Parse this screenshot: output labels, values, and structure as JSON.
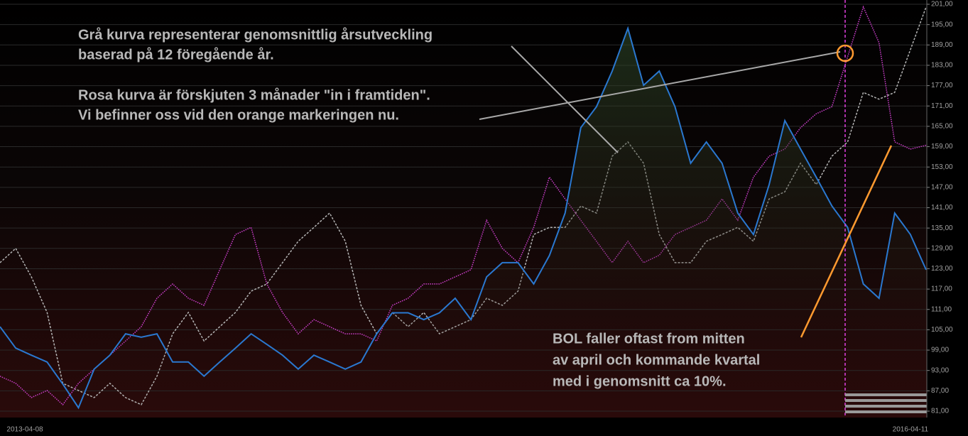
{
  "chart_data": {
    "type": "line",
    "categories": [
      "2013-04-08",
      null,
      null,
      null,
      null,
      null,
      null,
      null,
      null,
      null,
      null,
      null,
      null,
      null,
      null,
      null,
      null,
      null,
      null,
      null,
      null,
      null,
      null,
      null,
      null,
      null,
      null,
      null,
      null,
      null,
      null,
      null,
      null,
      null,
      null,
      null,
      null,
      null,
      null,
      null,
      null,
      null,
      null,
      null,
      null,
      null,
      null,
      null,
      null,
      null,
      null,
      null,
      null,
      null,
      null,
      null,
      null,
      null,
      "2016-04-11",
      null
    ],
    "series": [
      {
        "color": "#b4b4b4",
        "style": "dashed",
        "values": [
          124.8,
          129,
          120.6,
          110.1,
          89.2,
          87.1,
          85,
          89.2,
          85,
          82.9,
          91.3,
          103.8,
          110.1,
          101.7,
          105.9,
          110.1,
          116.4,
          118.5,
          124.8,
          131.1,
          135.2,
          139.4,
          131.1,
          112.2,
          103.8,
          110.1,
          105.9,
          110.1,
          103.8,
          105.9,
          108,
          114.3,
          112.2,
          116.4,
          133.1,
          135.2,
          135.2,
          141.5,
          139.4,
          156.2,
          160.4,
          154.1,
          133.1,
          124.8,
          124.8,
          131.1,
          133.1,
          135.2,
          131.1,
          143.6,
          145.7,
          154.1,
          147.8,
          156.2,
          160.4,
          175,
          173,
          175,
          187.6,
          200.2
        ]
      },
      {
        "color": "#d040d0",
        "style": "dotted",
        "values": [
          91.3,
          89.2,
          85,
          87.1,
          82.9,
          89.2,
          93.4,
          97.5,
          101.7,
          105.9,
          114.3,
          118.5,
          114.3,
          112.2,
          122.7,
          133.1,
          135.2,
          118.5,
          110.1,
          103.8,
          108,
          105.9,
          103.8,
          103.8,
          101.7,
          112.2,
          114.3,
          118.5,
          118.5,
          120.6,
          122.7,
          137.3,
          129,
          124.8,
          135.2,
          150,
          143.6,
          137.3,
          131.1,
          124.8,
          131.1,
          124.8,
          127,
          133.1,
          135.2,
          137.3,
          143.6,
          137.3,
          150,
          156.2,
          158.3,
          164.6,
          168.7,
          170.8,
          185.5,
          200.2,
          189.7,
          160.4,
          158.3,
          159.4
        ]
      },
      {
        "color": "#2a78d0",
        "style": "solid",
        "values": [
          105.9,
          99.6,
          97.5,
          95.5,
          89,
          82,
          93.4,
          97.5,
          103.8,
          102.8,
          103.8,
          95.5,
          95.5,
          91.3,
          95.5,
          99.6,
          103.8,
          100.7,
          97.5,
          93.4,
          97.5,
          95.5,
          93.4,
          95.5,
          103.8,
          110,
          110,
          108,
          110,
          114.3,
          108,
          120.6,
          124.8,
          124.8,
          118.5,
          126.9,
          139.4,
          164.6,
          170.8,
          181.3,
          193.9,
          177.1,
          181.3,
          170.8,
          154.1,
          160.4,
          154.1,
          139.4,
          133.1,
          147.8,
          166.7,
          158.3,
          150,
          141.5,
          135.2,
          118.5,
          114.3,
          139.4,
          133.1,
          122.7
        ]
      }
    ],
    "ylim": [
      81,
      201
    ],
    "yticks": [
      {
        "value": 81,
        "label": "81,00"
      },
      {
        "value": 87,
        "label": "87,00"
      },
      {
        "value": 93,
        "label": "93,00"
      },
      {
        "value": 99,
        "label": "99,00"
      },
      {
        "value": 105,
        "label": "105,00"
      },
      {
        "value": 111,
        "label": "111,00"
      },
      {
        "value": 117,
        "label": "117,00"
      },
      {
        "value": 123,
        "label": "123,00"
      },
      {
        "value": 129,
        "label": "129,00"
      },
      {
        "value": 135,
        "label": "135,00"
      },
      {
        "value": 141,
        "label": "141,00"
      },
      {
        "value": 147,
        "label": "147,00"
      },
      {
        "value": 153,
        "label": "153,00"
      },
      {
        "value": 159,
        "label": "159,00"
      },
      {
        "value": 165,
        "label": "165,00"
      },
      {
        "value": 171,
        "label": "171,00"
      },
      {
        "value": 177,
        "label": "177,00"
      },
      {
        "value": 183,
        "label": "183,00"
      },
      {
        "value": 189,
        "label": "189,00"
      },
      {
        "value": 195,
        "label": "195,00"
      },
      {
        "value": 201,
        "label": "201,00"
      }
    ],
    "grid": true,
    "annotations": [
      "Grå kurva representerar genomsnittlig årsutveckling",
      "baserad på 12 föregående år.",
      "Rosa kurva är förskjuten 3 månader \"in i framtiden\".",
      "Vi befinner oss vid den orange markeringen nu.",
      "BOL faller oftast from mitten",
      "av april och kommande kvartal",
      "med i genomsnitt ca 10%."
    ]
  }
}
